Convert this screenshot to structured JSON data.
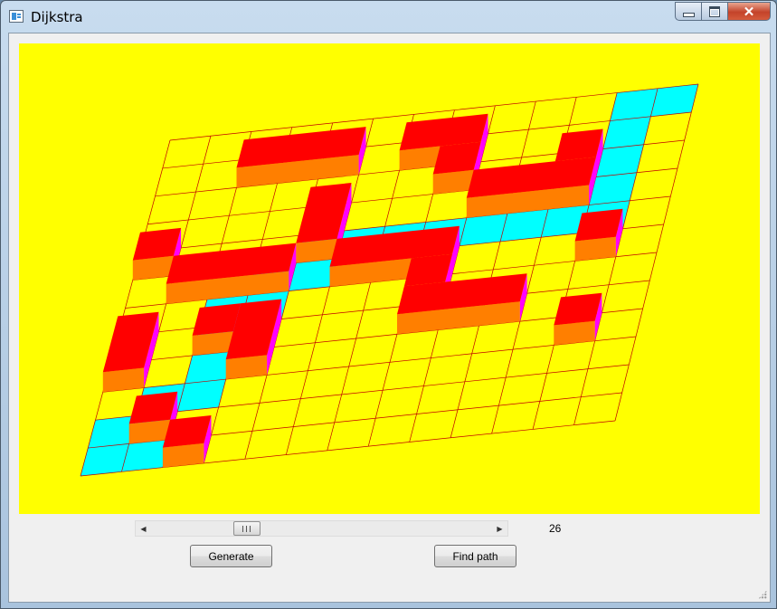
{
  "window": {
    "title": "Dijkstra"
  },
  "icons": {
    "app": "grid-window-icon",
    "minimize": "minimize-icon",
    "maximize": "maximize-icon",
    "close": "close-icon"
  },
  "colors": {
    "background": "#ffff00",
    "grid_line": "#c00000",
    "path": "#00ffff",
    "block_top": "#ff0000",
    "block_front": "#ff7f00",
    "block_side": "#ff00ff"
  },
  "grid": {
    "cols": 13,
    "rows": 12,
    "path": [
      [
        11,
        0
      ],
      [
        12,
        0
      ],
      [
        11,
        1
      ],
      [
        11,
        2
      ],
      [
        11,
        3
      ],
      [
        11,
        4
      ],
      [
        10,
        4
      ],
      [
        9,
        4
      ],
      [
        8,
        4
      ],
      [
        7,
        4
      ],
      [
        6,
        4
      ],
      [
        5,
        4
      ],
      [
        4,
        4
      ],
      [
        4,
        5
      ],
      [
        3,
        5
      ],
      [
        3,
        6
      ],
      [
        2,
        6
      ],
      [
        2,
        7
      ],
      [
        2,
        8
      ],
      [
        2,
        9
      ],
      [
        1,
        9
      ],
      [
        1,
        10
      ],
      [
        0,
        10
      ],
      [
        0,
        11
      ],
      [
        1,
        11
      ]
    ],
    "blocks": [
      {
        "c": 2,
        "r": 1,
        "w": 3,
        "h": 1
      },
      {
        "c": 6,
        "r": 1,
        "w": 2,
        "h": 1
      },
      {
        "c": 7,
        "r": 2,
        "w": 1,
        "h": 1
      },
      {
        "c": 10,
        "r": 2,
        "w": 1,
        "h": 1
      },
      {
        "c": 8,
        "r": 3,
        "w": 3,
        "h": 1
      },
      {
        "c": 0,
        "r": 4,
        "w": 1,
        "h": 1
      },
      {
        "c": 4,
        "r": 3,
        "w": 1,
        "h": 2
      },
      {
        "c": 1,
        "r": 5,
        "w": 3,
        "h": 1
      },
      {
        "c": 5,
        "r": 5,
        "w": 3,
        "h": 1
      },
      {
        "c": 11,
        "r": 5,
        "w": 1,
        "h": 1
      },
      {
        "c": 7,
        "r": 6,
        "w": 1,
        "h": 1
      },
      {
        "c": 7,
        "r": 7,
        "w": 3,
        "h": 1
      },
      {
        "c": 2,
        "r": 7,
        "w": 1,
        "h": 1
      },
      {
        "c": 0,
        "r": 7,
        "w": 1,
        "h": 2
      },
      {
        "c": 3,
        "r": 7,
        "w": 1,
        "h": 2
      },
      {
        "c": 11,
        "r": 8,
        "w": 1,
        "h": 1
      },
      {
        "c": 1,
        "r": 10,
        "w": 1,
        "h": 1
      },
      {
        "c": 2,
        "r": 11,
        "w": 1,
        "h": 1
      }
    ]
  },
  "slider": {
    "value": 26,
    "value_label": "26",
    "min": 0,
    "max": 100,
    "left_arrow": "◀",
    "right_arrow": "▶"
  },
  "buttons": {
    "generate": "Generate",
    "find_path": "Find path"
  }
}
